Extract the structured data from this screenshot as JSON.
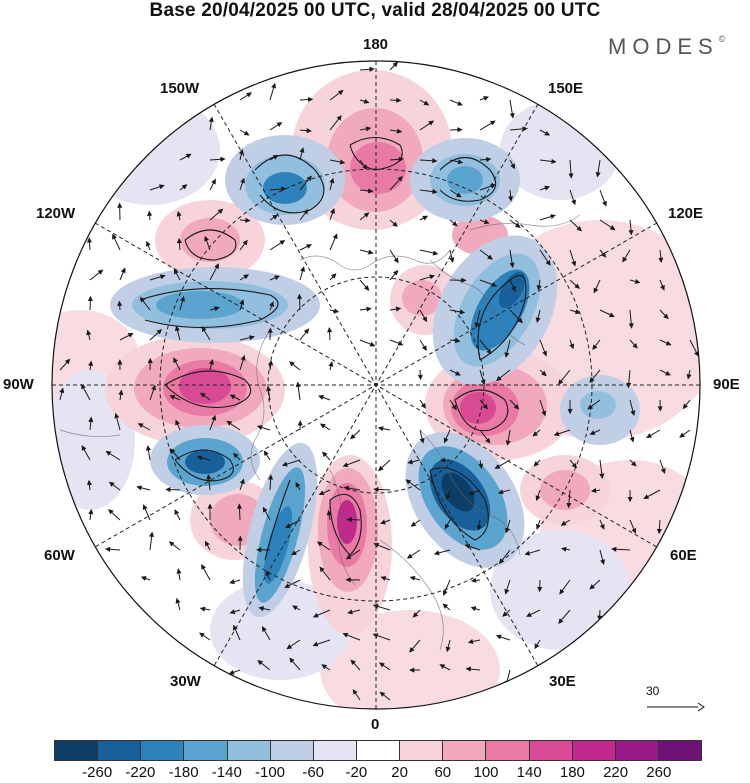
{
  "title": "Base 20/04/2025 00 UTC, valid 28/04/2025 00 UTC",
  "brand": "MODES",
  "brand_mark": "©",
  "longitude_labels": {
    "n180": "180",
    "w150": "150W",
    "e150": "150E",
    "w120": "120W",
    "e120": "120E",
    "w90": "90W",
    "e90": "90E",
    "w60": "60W",
    "e60": "60E",
    "w30": "30W",
    "e30": "30E",
    "s0": "0"
  },
  "vector_reference": "30",
  "colorbar": {
    "colors": [
      "#0d3f66",
      "#17609a",
      "#2d82bb",
      "#5ba4cf",
      "#93bfdf",
      "#c1cfe6",
      "#e4e4f2",
      "#ffffff",
      "#f7d3da",
      "#f1a9bd",
      "#e87aa4",
      "#d84a94",
      "#bf2a8c",
      "#9a1a86",
      "#6e1277"
    ],
    "ticks": [
      "-260",
      "-220",
      "-180",
      "-140",
      "-100",
      "-60",
      "-20",
      "20",
      "60",
      "100",
      "140",
      "180",
      "220",
      "260"
    ]
  }
}
